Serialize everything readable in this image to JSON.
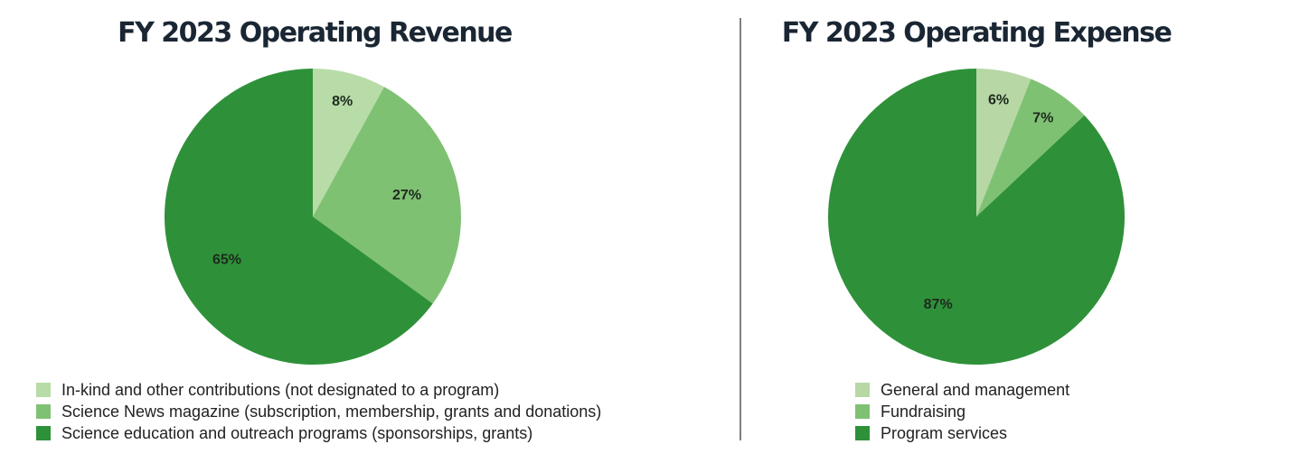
{
  "chart_data": [
    {
      "type": "pie",
      "title": "FY 2023 Operating Revenue",
      "categories": [
        "In-kind and other contributions (not designated to a program)",
        "Science News magazine (subscription, membership, grants and donations)",
        "Science education and outreach programs (sponsorships, grants)"
      ],
      "values": [
        8,
        27,
        65
      ],
      "value_labels": [
        "8%",
        "27%",
        "65%"
      ],
      "colors": [
        "#b7dca8",
        "#7fc172",
        "#2e9139"
      ]
    },
    {
      "type": "pie",
      "title": "FY 2023 Operating Expense",
      "categories": [
        "General and management",
        "Fundraising",
        "Program services"
      ],
      "values": [
        6,
        7,
        87
      ],
      "value_labels": [
        "6%",
        "7%",
        "87%"
      ],
      "colors": [
        "#b7d7a5",
        "#7fc172",
        "#2e9139"
      ]
    }
  ]
}
